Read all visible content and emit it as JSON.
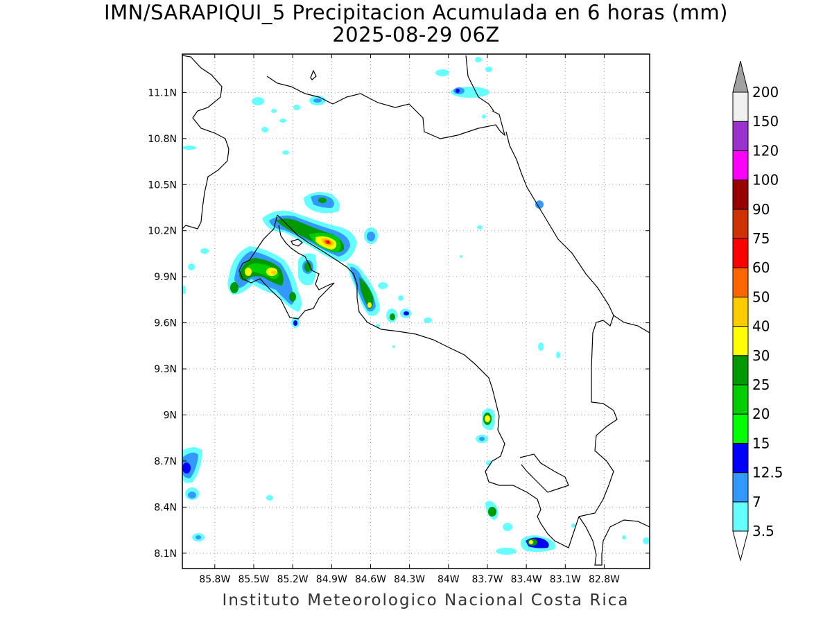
{
  "title": {
    "line1": "IMN/SARAPIQUI_5 Precipitacion Acumulada en 6 horas (mm)",
    "line2": "2025-08-29 06Z"
  },
  "footer": "Instituto Meteorologico Nacional Costa Rica",
  "map": {
    "lon_range": [
      -86.05,
      -82.45
    ],
    "lat_range": [
      8.0,
      11.35
    ],
    "lon_ticks": [
      "85.8W",
      "85.5W",
      "85.2W",
      "84.9W",
      "84.6W",
      "84.3W",
      "84W",
      "83.7W",
      "83.4W",
      "83.1W",
      "82.8W"
    ],
    "lat_ticks": [
      "8.1N",
      "8.4N",
      "8.7N",
      "9N",
      "9.3N",
      "9.6N",
      "9.9N",
      "10.2N",
      "10.5N",
      "10.8N",
      "11.1N"
    ],
    "grid": "dotted",
    "projection": "lat-lon"
  },
  "colorbar": {
    "labels": [
      "3.5",
      "7",
      "12.5",
      "15",
      "20",
      "25",
      "30",
      "40",
      "50",
      "60",
      "75",
      "90",
      "100",
      "120",
      "150",
      "200"
    ],
    "colors": [
      "#66ffff",
      "#3399ff",
      "#0000ff",
      "#00ff00",
      "#00cc00",
      "#009900",
      "#ffff00",
      "#ffcc00",
      "#ff6600",
      "#ff0000",
      "#cc3300",
      "#990000",
      "#ff00ff",
      "#9933cc",
      "#f0f0f0",
      "#a0a0a0"
    ]
  }
}
